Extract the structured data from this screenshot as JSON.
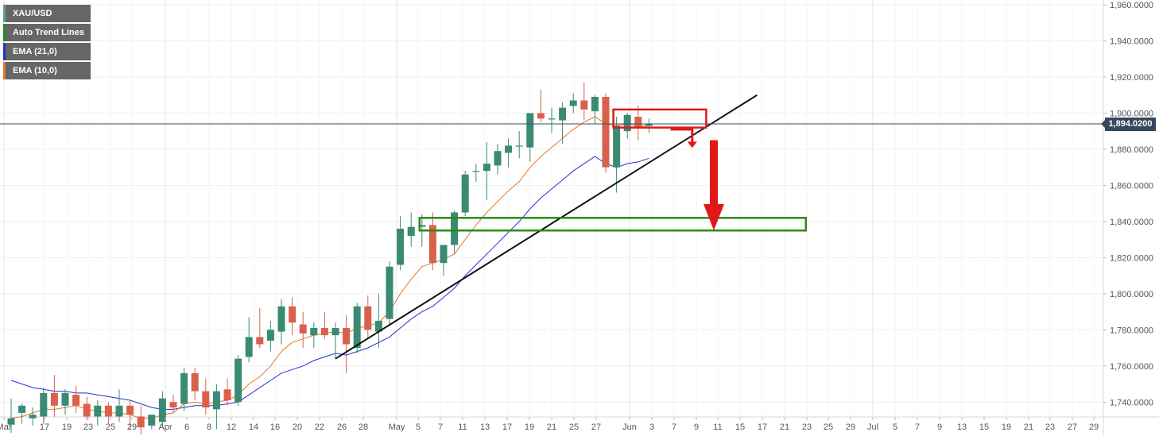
{
  "legend": [
    {
      "label": "XAU/USD",
      "color": "#5b9f9a"
    },
    {
      "label": "Auto Trend Lines",
      "color": "#1f8f1f"
    },
    {
      "label": "EMA (21,0)",
      "color": "#2233cc"
    },
    {
      "label": "EMA (10,0)",
      "color": "#e07a2a"
    }
  ],
  "current_price_label": "1,894.0200",
  "chart_data": {
    "type": "candlestick",
    "symbol": "XAU/USD",
    "ylim": [
      1730,
      1960
    ],
    "y_ticks": [
      {
        "value": 1960,
        "label": "1,960.0000"
      },
      {
        "value": 1940,
        "label": "1,940.0000"
      },
      {
        "value": 1920,
        "label": "1,920.0000"
      },
      {
        "value": 1900,
        "label": "1,900.0000"
      },
      {
        "value": 1880,
        "label": "1,880.0000"
      },
      {
        "value": 1860,
        "label": "1,860.0000"
      },
      {
        "value": 1840,
        "label": "1,840.0000"
      },
      {
        "value": 1820,
        "label": "1,820.0000"
      },
      {
        "value": 1800,
        "label": "1,800.0000"
      },
      {
        "value": 1780,
        "label": "1,780.0000"
      },
      {
        "value": 1760,
        "label": "1,760.0000"
      },
      {
        "value": 1740,
        "label": "1,740.0000"
      }
    ],
    "x_ticks": [
      {
        "label": "Mar",
        "major": true
      },
      {
        "label": "17",
        "major": false
      },
      {
        "label": "19",
        "major": false
      },
      {
        "label": "23",
        "major": false
      },
      {
        "label": "25",
        "major": false
      },
      {
        "label": "29",
        "major": false
      },
      {
        "label": "Apr",
        "major": true
      },
      {
        "label": "6",
        "major": false
      },
      {
        "label": "8",
        "major": false
      },
      {
        "label": "12",
        "major": false
      },
      {
        "label": "14",
        "major": false
      },
      {
        "label": "16",
        "major": false
      },
      {
        "label": "20",
        "major": false
      },
      {
        "label": "22",
        "major": false
      },
      {
        "label": "26",
        "major": false
      },
      {
        "label": "28",
        "major": false
      },
      {
        "label": "May",
        "major": true
      },
      {
        "label": "5",
        "major": false
      },
      {
        "label": "7",
        "major": false
      },
      {
        "label": "11",
        "major": false
      },
      {
        "label": "13",
        "major": false
      },
      {
        "label": "17",
        "major": false
      },
      {
        "label": "19",
        "major": false
      },
      {
        "label": "21",
        "major": false
      },
      {
        "label": "25",
        "major": false
      },
      {
        "label": "27",
        "major": false
      },
      {
        "label": "Jun",
        "major": true
      },
      {
        "label": "3",
        "major": false
      },
      {
        "label": "7",
        "major": false
      },
      {
        "label": "9",
        "major": false
      },
      {
        "label": "11",
        "major": false
      },
      {
        "label": "15",
        "major": false
      },
      {
        "label": "17",
        "major": false
      },
      {
        "label": "21",
        "major": false
      },
      {
        "label": "23",
        "major": false
      },
      {
        "label": "25",
        "major": false
      },
      {
        "label": "29",
        "major": false
      },
      {
        "label": "Jul",
        "major": true
      },
      {
        "label": "5",
        "major": false
      },
      {
        "label": "7",
        "major": false
      },
      {
        "label": "9",
        "major": false
      },
      {
        "label": "13",
        "major": false
      },
      {
        "label": "15",
        "major": false
      },
      {
        "label": "19",
        "major": false
      },
      {
        "label": "21",
        "major": false
      },
      {
        "label": "23",
        "major": false
      },
      {
        "label": "27",
        "major": false
      },
      {
        "label": "29",
        "major": false
      }
    ],
    "candles": [
      {
        "o": 1727.5,
        "h": 1742.0,
        "l": 1723.0,
        "c": 1731.0
      },
      {
        "o": 1734.0,
        "h": 1739.0,
        "l": 1728.0,
        "c": 1738.0
      },
      {
        "o": 1731.0,
        "h": 1737.0,
        "l": 1727.0,
        "c": 1733.0
      },
      {
        "o": 1732.0,
        "h": 1748.0,
        "l": 1728.0,
        "c": 1745.0
      },
      {
        "o": 1745.0,
        "h": 1755.0,
        "l": 1732.0,
        "c": 1738.0
      },
      {
        "o": 1738.0,
        "h": 1747.0,
        "l": 1733.0,
        "c": 1745.0
      },
      {
        "o": 1744.0,
        "h": 1749.0,
        "l": 1734.0,
        "c": 1738.0
      },
      {
        "o": 1739.0,
        "h": 1743.0,
        "l": 1730.0,
        "c": 1732.0
      },
      {
        "o": 1732.0,
        "h": 1741.0,
        "l": 1727.0,
        "c": 1738.0
      },
      {
        "o": 1738.0,
        "h": 1740.0,
        "l": 1728.0,
        "c": 1732.0
      },
      {
        "o": 1732.0,
        "h": 1747.0,
        "l": 1729.0,
        "c": 1738.0
      },
      {
        "o": 1738.0,
        "h": 1741.0,
        "l": 1725.0,
        "c": 1733.0
      },
      {
        "o": 1732.0,
        "h": 1738.0,
        "l": 1722.0,
        "c": 1726.0
      },
      {
        "o": 1727.0,
        "h": 1733.0,
        "l": 1725.0,
        "c": 1733.0
      },
      {
        "o": 1729.0,
        "h": 1746.0,
        "l": 1727.0,
        "c": 1742.0
      },
      {
        "o": 1740.0,
        "h": 1744.0,
        "l": 1734.0,
        "c": 1737.0
      },
      {
        "o": 1739.0,
        "h": 1759.0,
        "l": 1735.0,
        "c": 1756.0
      },
      {
        "o": 1756.0,
        "h": 1759.0,
        "l": 1741.0,
        "c": 1746.0
      },
      {
        "o": 1746.0,
        "h": 1753.0,
        "l": 1733.0,
        "c": 1737.0
      },
      {
        "o": 1736.0,
        "h": 1750.0,
        "l": 1725.0,
        "c": 1746.0
      },
      {
        "o": 1747.0,
        "h": 1753.0,
        "l": 1738.0,
        "c": 1741.0
      },
      {
        "o": 1740.0,
        "h": 1766.0,
        "l": 1738.0,
        "c": 1764.0
      },
      {
        "o": 1765.0,
        "h": 1787.0,
        "l": 1762.0,
        "c": 1776.0
      },
      {
        "o": 1776.0,
        "h": 1792.0,
        "l": 1770.0,
        "c": 1772.0
      },
      {
        "o": 1774.0,
        "h": 1785.0,
        "l": 1768.0,
        "c": 1780.0
      },
      {
        "o": 1779.0,
        "h": 1797.0,
        "l": 1772.0,
        "c": 1793.0
      },
      {
        "o": 1793.0,
        "h": 1798.0,
        "l": 1777.0,
        "c": 1784.0
      },
      {
        "o": 1783.0,
        "h": 1790.0,
        "l": 1770.0,
        "c": 1778.0
      },
      {
        "o": 1777.0,
        "h": 1784.0,
        "l": 1770.0,
        "c": 1781.0
      },
      {
        "o": 1781.0,
        "h": 1790.0,
        "l": 1775.0,
        "c": 1777.0
      },
      {
        "o": 1777.0,
        "h": 1784.0,
        "l": 1764.0,
        "c": 1781.0
      },
      {
        "o": 1781.0,
        "h": 1788.0,
        "l": 1756.0,
        "c": 1772.0
      },
      {
        "o": 1770.0,
        "h": 1795.0,
        "l": 1767.0,
        "c": 1793.0
      },
      {
        "o": 1793.0,
        "h": 1799.0,
        "l": 1775.0,
        "c": 1780.0
      },
      {
        "o": 1779.0,
        "h": 1800.0,
        "l": 1770.0,
        "c": 1785.0
      },
      {
        "o": 1786.0,
        "h": 1818.0,
        "l": 1783.0,
        "c": 1815.0
      },
      {
        "o": 1816.0,
        "h": 1843.0,
        "l": 1813.0,
        "c": 1836.0
      },
      {
        "o": 1832.0,
        "h": 1845.0,
        "l": 1826.0,
        "c": 1837.0
      },
      {
        "o": 1837.0,
        "h": 1844.0,
        "l": 1826.0,
        "c": 1838.0
      },
      {
        "o": 1838.0,
        "h": 1845.0,
        "l": 1813.0,
        "c": 1817.0
      },
      {
        "o": 1817.0,
        "h": 1826.0,
        "l": 1810.0,
        "c": 1827.0
      },
      {
        "o": 1827.0,
        "h": 1846.0,
        "l": 1822.0,
        "c": 1845.0
      },
      {
        "o": 1845.0,
        "h": 1868.0,
        "l": 1843.0,
        "c": 1866.0
      },
      {
        "o": 1868.0,
        "h": 1872.0,
        "l": 1862.0,
        "c": 1868.0
      },
      {
        "o": 1868.0,
        "h": 1884.0,
        "l": 1852.0,
        "c": 1872.0
      },
      {
        "o": 1871.0,
        "h": 1883.0,
        "l": 1866.0,
        "c": 1879.0
      },
      {
        "o": 1878.0,
        "h": 1886.0,
        "l": 1870.0,
        "c": 1882.0
      },
      {
        "o": 1882.0,
        "h": 1890.0,
        "l": 1875.0,
        "c": 1882.0
      },
      {
        "o": 1881.0,
        "h": 1900.0,
        "l": 1873.0,
        "c": 1900.0
      },
      {
        "o": 1900.0,
        "h": 1913.0,
        "l": 1895.0,
        "c": 1897.0
      },
      {
        "o": 1897.0,
        "h": 1903.0,
        "l": 1889.0,
        "c": 1897.0
      },
      {
        "o": 1896.0,
        "h": 1906.0,
        "l": 1883.0,
        "c": 1903.0
      },
      {
        "o": 1904.0,
        "h": 1911.0,
        "l": 1900.0,
        "c": 1907.0
      },
      {
        "o": 1907.0,
        "h": 1917.0,
        "l": 1896.0,
        "c": 1902.0
      },
      {
        "o": 1901.0,
        "h": 1910.0,
        "l": 1894.0,
        "c": 1909.0
      },
      {
        "o": 1909.0,
        "h": 1911.0,
        "l": 1867.0,
        "c": 1870.0
      },
      {
        "o": 1870.0,
        "h": 1898.0,
        "l": 1856.0,
        "c": 1893.0
      },
      {
        "o": 1890.0,
        "h": 1900.0,
        "l": 1886.0,
        "c": 1899.0
      },
      {
        "o": 1898.0,
        "h": 1904.0,
        "l": 1885.0,
        "c": 1892.0
      },
      {
        "o": 1893.0,
        "h": 1897.0,
        "l": 1889.0,
        "c": 1894.0
      }
    ],
    "ema_fast_name": "EMA (10,0)",
    "ema_slow_name": "EMA (21,0)",
    "ema_fast": [
      1731,
      1732,
      1734,
      1736,
      1736,
      1737,
      1738,
      1736,
      1735,
      1734,
      1734,
      1733,
      1731,
      1731,
      1733,
      1734,
      1739,
      1740,
      1739,
      1740,
      1741,
      1744,
      1750,
      1754,
      1760,
      1768,
      1773,
      1775,
      1777,
      1778,
      1779,
      1778,
      1781,
      1782,
      1784,
      1790,
      1800,
      1808,
      1815,
      1817,
      1819,
      1822,
      1830,
      1838,
      1845,
      1851,
      1857,
      1862,
      1870,
      1876,
      1881,
      1886,
      1891,
      1895,
      1898,
      1894,
      1893,
      1894,
      1893,
      1893
    ],
    "ema_slow": [
      1752,
      1750,
      1748,
      1747,
      1746,
      1746,
      1745,
      1745,
      1744,
      1743,
      1742,
      1741,
      1739,
      1737,
      1736,
      1736,
      1737,
      1738,
      1738,
      1738,
      1739,
      1740,
      1744,
      1748,
      1752,
      1756,
      1758,
      1760,
      1763,
      1765,
      1767,
      1766,
      1768,
      1770,
      1773,
      1776,
      1781,
      1786,
      1790,
      1793,
      1798,
      1803,
      1810,
      1816,
      1822,
      1828,
      1834,
      1840,
      1847,
      1853,
      1858,
      1863,
      1868,
      1872,
      1876,
      1872,
      1870,
      1872,
      1873,
      1875
    ],
    "trendline": {
      "from": {
        "index": 30,
        "value": 1764
      },
      "to": {
        "index": 69,
        "value": 1910
      }
    },
    "resistance_box": {
      "from_index": 56,
      "to_index": 64,
      "top": 1902,
      "bottom": 1892
    },
    "support_box": {
      "from_index": 38,
      "to_index": 73,
      "top": 1842,
      "bottom": 1835
    },
    "arrow_small": {
      "index": 63,
      "from": 1891,
      "to": 1882
    },
    "arrow_large": {
      "index": 65,
      "from": 1885,
      "to": 1836
    },
    "current_price": 1894.02
  }
}
